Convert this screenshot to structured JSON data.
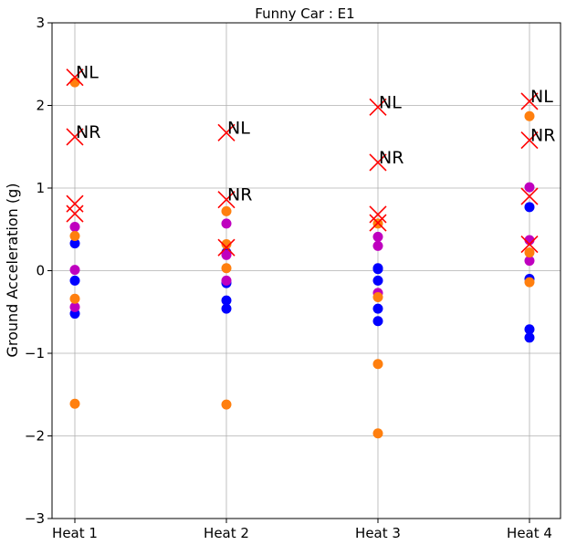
{
  "chart_data": {
    "type": "scatter",
    "title": "Funny Car : E1",
    "xlabel": "",
    "ylabel": "Ground Acceleration (g)",
    "categories": [
      "Heat 1",
      "Heat 2",
      "Heat 3",
      "Heat 4"
    ],
    "ylim": [
      -3,
      3
    ],
    "yticks": [
      -3,
      -2,
      -1,
      0,
      1,
      2,
      3
    ],
    "grid": true,
    "colors": {
      "blue": "#0000ff",
      "magenta": "#bf00bf",
      "orange": "#ff7f0e",
      "cross": "#ff0000"
    },
    "series": [
      {
        "color": "blue",
        "marker": "circle",
        "x": [
          0,
          0,
          0,
          1,
          1,
          1,
          1,
          2,
          2,
          2,
          2,
          2,
          3,
          3,
          3,
          3
        ],
        "y": [
          0.33,
          -0.12,
          -0.52,
          0.22,
          -0.15,
          -0.36,
          -0.46,
          0.03,
          -0.12,
          -0.46,
          -0.61,
          0.02,
          0.77,
          -0.1,
          -0.71,
          -0.81
        ]
      },
      {
        "color": "magenta",
        "marker": "circle",
        "x": [
          0,
          0,
          0,
          1,
          1,
          1,
          2,
          2,
          2,
          3,
          3,
          3
        ],
        "y": [
          0.53,
          0.01,
          -0.44,
          0.57,
          0.19,
          -0.12,
          0.41,
          0.3,
          -0.27,
          1.01,
          0.37,
          0.12
        ]
      },
      {
        "color": "orange",
        "marker": "circle",
        "x": [
          0,
          0,
          0,
          0,
          1,
          1,
          1,
          1,
          2,
          2,
          2,
          2,
          3,
          3,
          3
        ],
        "y": [
          2.28,
          0.42,
          -0.34,
          -1.61,
          0.72,
          0.32,
          0.03,
          -1.62,
          0.57,
          -0.32,
          -1.13,
          -1.97,
          1.87,
          0.22,
          -0.14
        ]
      },
      {
        "color": "cross",
        "marker": "x",
        "x": [
          0,
          0,
          0,
          0,
          1,
          1,
          1,
          2,
          2,
          2,
          2,
          3,
          3,
          3,
          3
        ],
        "y": [
          2.34,
          1.62,
          0.81,
          0.69,
          1.67,
          0.86,
          0.28,
          1.98,
          1.31,
          0.68,
          0.58,
          2.05,
          1.58,
          0.9,
          0.32
        ]
      }
    ],
    "annotations": [
      {
        "text": "NL",
        "x": 0,
        "y": 2.34
      },
      {
        "text": "NR",
        "x": 0,
        "y": 1.62
      },
      {
        "text": "NL",
        "x": 1,
        "y": 1.67
      },
      {
        "text": "NR",
        "x": 1,
        "y": 0.86
      },
      {
        "text": "NL",
        "x": 2,
        "y": 1.98
      },
      {
        "text": "NR",
        "x": 2,
        "y": 1.31
      },
      {
        "text": "NL",
        "x": 3,
        "y": 2.05
      },
      {
        "text": "NR",
        "x": 3,
        "y": 1.58
      }
    ]
  }
}
